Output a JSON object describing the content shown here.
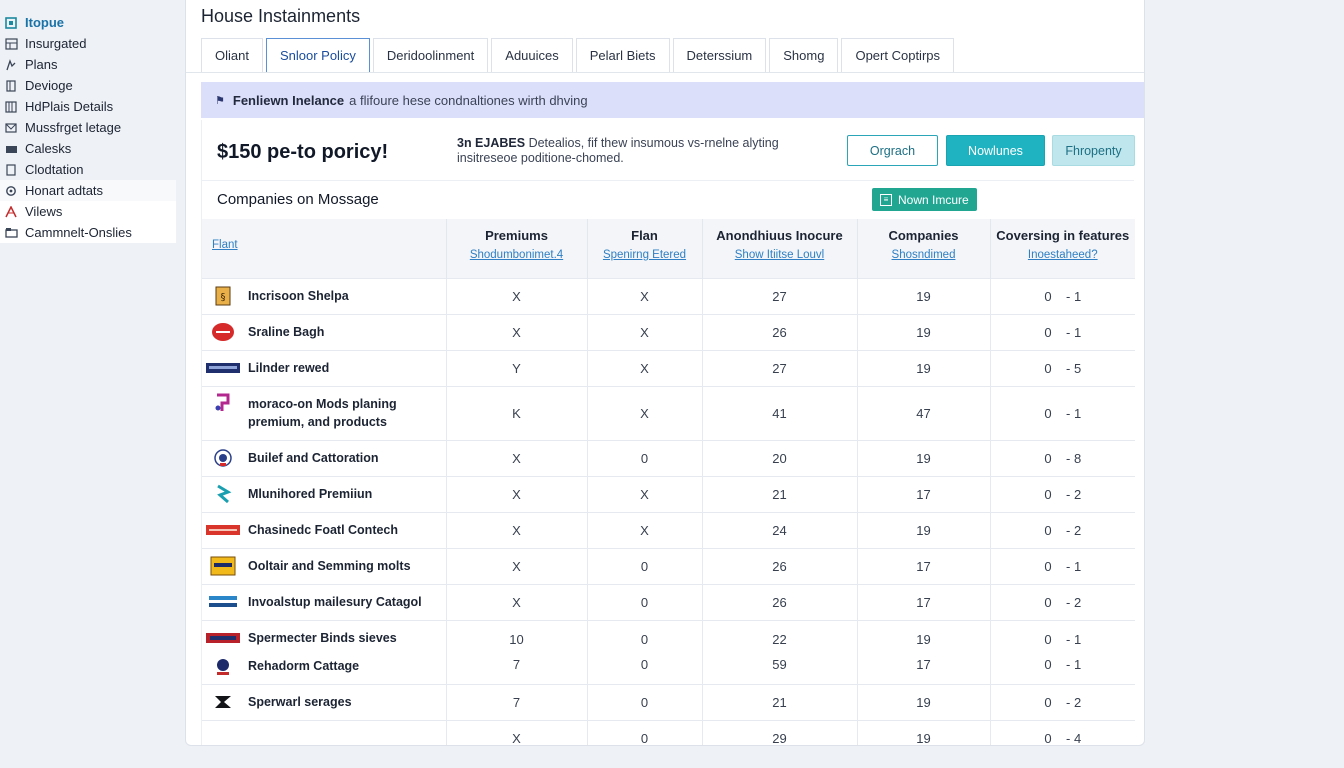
{
  "sidebar": {
    "items": [
      {
        "label": "Itopue",
        "icon": "home-icon",
        "active": true
      },
      {
        "label": "Insurgated",
        "icon": "grid-icon"
      },
      {
        "label": "Plans",
        "icon": "plan-icon"
      },
      {
        "label": "Devioge",
        "icon": "device-icon"
      },
      {
        "label": "HdPlais Details",
        "icon": "details-icon"
      },
      {
        "label": "Mussfrget letage",
        "icon": "message-icon"
      },
      {
        "label": "Calesks",
        "icon": "card-icon"
      },
      {
        "label": "Clodtation",
        "icon": "document-icon"
      },
      {
        "label": "Honart adtats",
        "icon": "gear-icon"
      },
      {
        "label": "Vilews",
        "icon": "view-icon"
      },
      {
        "label": "Cammnelt-Onslies",
        "icon": "folder-icon"
      }
    ]
  },
  "header": {
    "title": "House Instainments",
    "tabs": [
      "Oliant",
      "Snloor Policy",
      "Deridoolinment",
      "Aduuices",
      "Pelarl Biets",
      "Deterssium",
      "Shomg",
      "Opert Coptirps"
    ],
    "active_tab": 1
  },
  "banner": {
    "strong": "Fenliewn Inelance",
    "text": "a flifoure hese condnaltiones wirth dhving"
  },
  "summary": {
    "price": "$150 pe-to poricy!",
    "desc_strong": "3n EJABES",
    "desc_text": "Detealios, fif thew insumous vs-rnelne alyting insitreseoe poditione-chomed.",
    "buttons": {
      "outline": "Orgrach",
      "primary": "Nowlunes",
      "light": "Fhropenty"
    }
  },
  "companies": {
    "title": "Companies on Mossage",
    "badge": "Nown Imcure"
  },
  "table": {
    "columns": [
      {
        "title": "",
        "link": "Flant"
      },
      {
        "title": "Premiums",
        "link": "Shodumbonimet.4"
      },
      {
        "title": "Flan",
        "link": "Spenirng Etered"
      },
      {
        "title": "Anondhiuus Inocure",
        "link": "Show Itiitse Louvl"
      },
      {
        "title": "Companies",
        "link": "Shosndimed"
      },
      {
        "title": "Coversing in features",
        "link": "Inoestaheed?"
      }
    ],
    "rows": [
      {
        "name": "Incrisoon Shelpa",
        "logo": "shield-logo",
        "premium": "X",
        "plan": "X",
        "annual": "27",
        "companies": "19",
        "range_a": "0",
        "range_b": "- 1"
      },
      {
        "name": "Sraline Bagh",
        "logo": "red-oval-logo",
        "premium": "X",
        "plan": "X",
        "annual": "26",
        "companies": "19",
        "range_a": "0",
        "range_b": "- 1"
      },
      {
        "name": "Lilnder rewed",
        "logo": "navy-bar-logo",
        "premium": "Y",
        "plan": "X",
        "annual": "27",
        "companies": "19",
        "range_a": "0",
        "range_b": "- 5"
      },
      {
        "name": "moraco-on Mods planing premium, and products",
        "logo": "magenta-logo",
        "premium": "K",
        "plan": "X",
        "annual": "41",
        "companies": "47",
        "range_a": "0",
        "range_b": "- 1"
      },
      {
        "name": "Builef and Cattoration",
        "logo": "round-seal-logo",
        "premium": "X",
        "plan": "0",
        "annual": "20",
        "companies": "19",
        "range_a": "0",
        "range_b": "- 8"
      },
      {
        "name": "Mlunihored Premiiun",
        "logo": "teal-arrow-logo",
        "premium": "X",
        "plan": "X",
        "annual": "21",
        "companies": "17",
        "range_a": "0",
        "range_b": "- 2"
      },
      {
        "name": "Chasinedc Foatl Contech",
        "logo": "red-bar-logo",
        "premium": "X",
        "plan": "X",
        "annual": "24",
        "companies": "19",
        "range_a": "0",
        "range_b": "- 2"
      },
      {
        "name": "Ooltair and Semming molts",
        "logo": "yellow-box-logo",
        "premium": "X",
        "plan": "0",
        "annual": "26",
        "companies": "17",
        "range_a": "0",
        "range_b": "- 1"
      },
      {
        "name": "Invoalstup mailesury Catagol",
        "logo": "blue-text-logo",
        "premium": "X",
        "plan": "0",
        "annual": "26",
        "companies": "17",
        "range_a": "0",
        "range_b": "- 2"
      }
    ],
    "double_row": [
      {
        "name": "Spermecter Binds sieves",
        "logo": "red-navy-logo",
        "premium": "10",
        "plan": "0",
        "annual": "22",
        "companies": "19",
        "range_a": "0",
        "range_b": "- 1"
      },
      {
        "name": "Rehadorm Cattage",
        "logo": "navy-seal-logo",
        "premium": "7",
        "plan": "0",
        "annual": "59",
        "companies": "17",
        "range_a": "0",
        "range_b": "- 1"
      }
    ],
    "last_row": {
      "name": "Sperwarl serages",
      "logo": "black-emblem-logo",
      "premium": "7",
      "plan": "0",
      "annual": "21",
      "companies": "19",
      "range_a": "0",
      "range_b": "- 2"
    },
    "partial_row": {
      "premium": "X",
      "plan": "0",
      "annual": "29",
      "companies": "19",
      "range_a": "0",
      "range_b": "- 4"
    }
  },
  "colors": {
    "accent_teal": "#1fb3c1",
    "badge_green": "#21a692",
    "banner_bg": "#dcdffa",
    "link_blue": "#2e7fc4"
  }
}
